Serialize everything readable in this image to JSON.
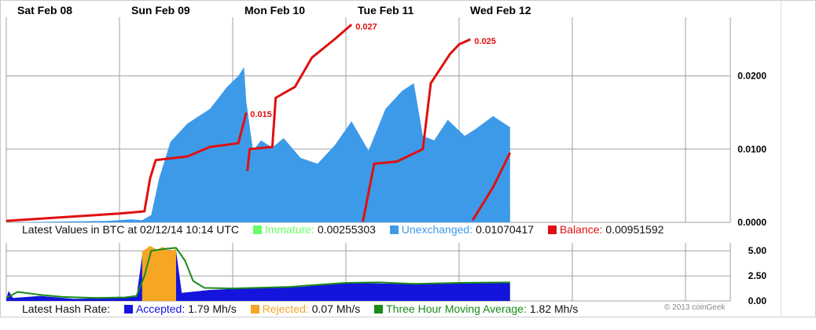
{
  "colors": {
    "immature": "#66ff66",
    "unexchanged": "#3d9ae8",
    "balance": "#e01010",
    "accepted": "#1414dc",
    "rejected": "#f5a623",
    "moving_avg": "#1a8a1a",
    "grid": "#a0a0a0"
  },
  "day_labels": [
    "Sat  Feb 08",
    "Sun  Feb 09",
    "Mon  Feb 10",
    "Tue  Feb 11",
    "Wed  Feb 12"
  ],
  "chart_data": [
    {
      "type": "area",
      "title": "Latest Values in BTC at 02/12/14 10:14 UTC",
      "x_unit": "days since Feb 08 00:00",
      "ylim": [
        0,
        0.028
      ],
      "ytick_values": [
        0,
        0.01,
        0.02
      ],
      "y_ticks": [
        "0.0000",
        "0.0100",
        "0.0200"
      ],
      "grid": true,
      "series": [
        {
          "name": "Immature",
          "kind": "area",
          "color_key": "immature",
          "points": [
            [
              0,
              0
            ],
            [
              2.35,
              0
            ],
            [
              2.38,
              0.0015
            ],
            [
              2.6,
              0.0016
            ],
            [
              2.9,
              0.0012
            ],
            [
              3.15,
              0.0018
            ],
            [
              3.3,
              0.002
            ],
            [
              3.45,
              0.0015
            ],
            [
              3.55,
              0.0028
            ],
            [
              3.7,
              0.0022
            ],
            [
              3.9,
              0.0018
            ],
            [
              4.2,
              0.0023
            ],
            [
              4.35,
              0.0028
            ],
            [
              4.45,
              0.002
            ]
          ]
        },
        {
          "name": "Unexchanged",
          "kind": "area",
          "color_key": "unexchanged",
          "points": [
            [
              0,
              0
            ],
            [
              0.9,
              0.0002
            ],
            [
              1.1,
              0.0004
            ],
            [
              1.2,
              0.0003
            ],
            [
              1.28,
              0.001
            ],
            [
              1.35,
              0.006
            ],
            [
              1.45,
              0.011
            ],
            [
              1.6,
              0.0135
            ],
            [
              1.8,
              0.0155
            ],
            [
              1.95,
              0.0185
            ],
            [
              2.05,
              0.02
            ],
            [
              2.1,
              0.0212
            ],
            [
              2.12,
              0.0165
            ],
            [
              2.18,
              0.0098
            ],
            [
              2.25,
              0.0112
            ],
            [
              2.35,
              0.0102
            ],
            [
              2.45,
              0.0115
            ],
            [
              2.6,
              0.0088
            ],
            [
              2.75,
              0.008
            ],
            [
              2.9,
              0.0105
            ],
            [
              3.05,
              0.0138
            ],
            [
              3.2,
              0.0098
            ],
            [
              3.35,
              0.0155
            ],
            [
              3.5,
              0.018
            ],
            [
              3.6,
              0.019
            ],
            [
              3.68,
              0.0118
            ],
            [
              3.78,
              0.0112
            ],
            [
              3.9,
              0.014
            ],
            [
              4.05,
              0.0118
            ],
            [
              4.15,
              0.0128
            ],
            [
              4.3,
              0.0145
            ],
            [
              4.4,
              0.0135
            ],
            [
              4.45,
              0.013
            ]
          ]
        },
        {
          "name": "Balance",
          "kind": "line",
          "color_key": "balance",
          "segments": [
            [
              [
                0,
                0.0002
              ],
              [
                0.6,
                0.0008
              ],
              [
                1.0,
                0.0012
              ],
              [
                1.22,
                0.0015
              ],
              [
                1.27,
                0.006
              ],
              [
                1.32,
                0.0085
              ],
              [
                1.6,
                0.009
              ],
              [
                1.8,
                0.0103
              ],
              [
                2.05,
                0.0108
              ],
              [
                2.12,
                0.015
              ]
            ],
            [
              [
                2.13,
                0.007
              ],
              [
                2.15,
                0.01
              ],
              [
                2.35,
                0.0103
              ],
              [
                2.38,
                0.017
              ],
              [
                2.55,
                0.0185
              ],
              [
                2.7,
                0.0225
              ],
              [
                2.9,
                0.025
              ],
              [
                3.05,
                0.027
              ]
            ],
            [
              [
                3.15,
                0.0001
              ],
              [
                3.25,
                0.008
              ],
              [
                3.45,
                0.0083
              ],
              [
                3.68,
                0.01
              ],
              [
                3.75,
                0.019
              ],
              [
                3.92,
                0.023
              ],
              [
                4.0,
                0.0243
              ],
              [
                4.1,
                0.025
              ]
            ],
            [
              [
                4.12,
                0.0003
              ],
              [
                4.3,
                0.0048
              ],
              [
                4.45,
                0.0095
              ]
            ]
          ]
        }
      ],
      "annotations": [
        {
          "label": "0.015",
          "x": 2.12,
          "y": 0.015
        },
        {
          "label": "0.027",
          "x": 3.05,
          "y": 0.027
        },
        {
          "label": "0.025",
          "x": 4.1,
          "y": 0.025
        }
      ]
    },
    {
      "type": "area",
      "title": "Latest Hash Rate:",
      "x_unit": "days since Feb 08 00:00",
      "ylim": [
        0,
        5.8
      ],
      "ytick_values": [
        0,
        2.5,
        5
      ],
      "y_ticks": [
        "0.00",
        "2.50",
        "5.00"
      ],
      "grid": true,
      "series": [
        {
          "name": "Accepted",
          "kind": "area",
          "color_key": "accepted",
          "points": [
            [
              0,
              0.2
            ],
            [
              0.02,
              1.0
            ],
            [
              0.06,
              0.3
            ],
            [
              0.3,
              0.5
            ],
            [
              0.6,
              0.2
            ],
            [
              0.95,
              0.3
            ],
            [
              1.15,
              0.4
            ],
            [
              1.2,
              4.5
            ],
            [
              1.25,
              5.0
            ],
            [
              1.35,
              5.2
            ],
            [
              1.5,
              5.0
            ],
            [
              1.55,
              0.8
            ],
            [
              1.8,
              1.1
            ],
            [
              2.0,
              1.2
            ],
            [
              2.2,
              1.3
            ],
            [
              2.6,
              1.4
            ],
            [
              3.0,
              1.8
            ],
            [
              3.5,
              1.7
            ],
            [
              4.0,
              1.8
            ],
            [
              4.45,
              1.8
            ]
          ]
        },
        {
          "name": "Rejected",
          "kind": "area",
          "color_key": "rejected",
          "points": [
            [
              1.2,
              4.9
            ],
            [
              1.27,
              5.5
            ],
            [
              1.33,
              5.1
            ],
            [
              1.38,
              5.4
            ],
            [
              1.45,
              5.0
            ],
            [
              1.5,
              5.2
            ]
          ]
        },
        {
          "name": "Three Hour Moving Average",
          "kind": "line",
          "color_key": "moving_avg",
          "points": [
            [
              0,
              0.3
            ],
            [
              0.1,
              0.9
            ],
            [
              0.3,
              0.6
            ],
            [
              0.5,
              0.4
            ],
            [
              0.8,
              0.3
            ],
            [
              1.05,
              0.35
            ],
            [
              1.15,
              0.5
            ],
            [
              1.22,
              2.5
            ],
            [
              1.28,
              5.0
            ],
            [
              1.4,
              5.2
            ],
            [
              1.5,
              5.3
            ],
            [
              1.58,
              4.0
            ],
            [
              1.65,
              2.0
            ],
            [
              1.75,
              1.3
            ],
            [
              2.0,
              1.25
            ],
            [
              2.5,
              1.4
            ],
            [
              3.0,
              1.8
            ],
            [
              3.3,
              1.85
            ],
            [
              3.6,
              1.7
            ],
            [
              4.0,
              1.8
            ],
            [
              4.45,
              1.85
            ]
          ]
        }
      ]
    }
  ],
  "legend_btc": {
    "title": "Latest Values in BTC at 02/12/14 10:14 UTC",
    "items": [
      {
        "label": "Immature:",
        "value": "0.00255303",
        "color_key": "immature"
      },
      {
        "label": "Unexchanged:",
        "value": "0.01070417",
        "color_key": "unexchanged"
      },
      {
        "label": "Balance:",
        "value": "0.00951592",
        "color_key": "balance"
      }
    ]
  },
  "legend_hash": {
    "title": "Latest Hash Rate:",
    "items": [
      {
        "label": "Accepted:",
        "value": "1.79 Mh/s",
        "color_key": "accepted"
      },
      {
        "label": "Rejected:",
        "value": "0.07 Mh/s",
        "color_key": "rejected"
      },
      {
        "label": "Three Hour Moving Average:",
        "value": "1.82 Mh/s",
        "color_key": "moving_avg"
      }
    ]
  },
  "copyright": "© 2013 coinGeek"
}
